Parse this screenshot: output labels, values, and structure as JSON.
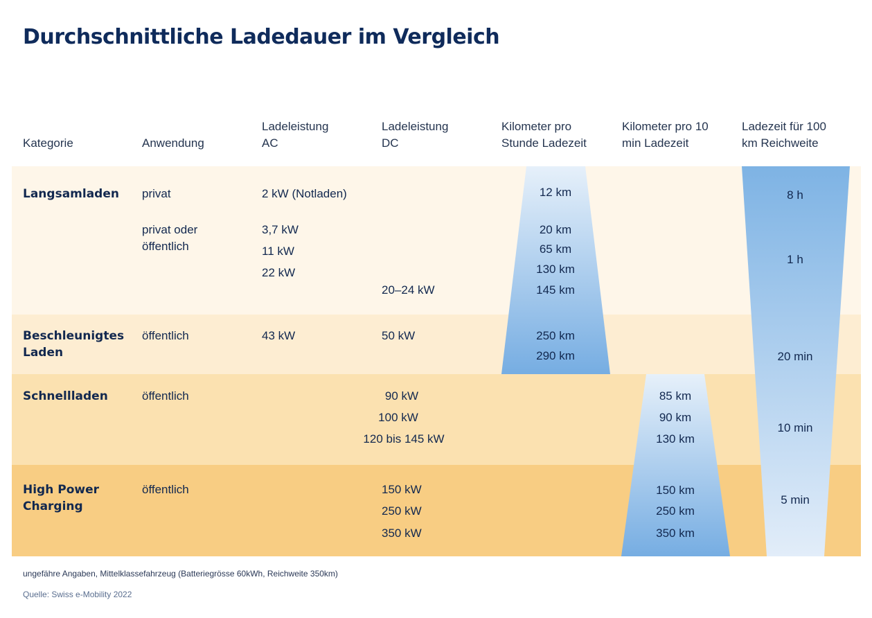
{
  "title": "Durchschnittliche Ladedauer im Vergleich",
  "headers": {
    "kategorie": "Kategorie",
    "anwendung": "Anwendung",
    "ac": "Ladeleistung\nAC",
    "dc": "Ladeleistung\nDC",
    "km_stunde": "Kilometer pro\nStunde Ladezeit",
    "km_10min": "Kilometer pro 10\nmin Ladezeit",
    "ladezeit": "Ladezeit für 100\nkm Reichweite"
  },
  "rows": {
    "langsam": {
      "kategorie": "Langsamladen",
      "anwendung_1": "privat",
      "anwendung_2": "privat oder\nöffentlich",
      "ac_1": "2 kW (Notladen)",
      "ac_2": "3,7 kW",
      "ac_3": "11 kW",
      "ac_4": "22 kW",
      "dc_1": "20–24 kW",
      "km_1": "12 km",
      "km_2": "20 km",
      "km_3": "65 km",
      "km_4": "130 km",
      "km_5": "145 km",
      "zeit_1": "8 h",
      "zeit_2": "1 h"
    },
    "beschleunigt": {
      "kategorie": "Beschleunigtes\nLaden",
      "anwendung": "öffentlich",
      "ac": "43 kW",
      "dc": "50 kW",
      "km_1": "250 km",
      "km_2": "290 km",
      "zeit": "20 min"
    },
    "schnell": {
      "kategorie": "Schnellladen",
      "anwendung": "öffentlich",
      "dc_1": "90 kW",
      "dc_2": "100 kW",
      "dc_3": "120 bis 145 kW",
      "km10_1": "85 km",
      "km10_2": "90 km",
      "km10_3": "130 km",
      "zeit": "10 min"
    },
    "hpc": {
      "kategorie": "High Power\nCharging",
      "anwendung": "öffentlich",
      "dc_1": "150 kW",
      "dc_2": "250 kW",
      "dc_3": "350 kW",
      "km10_1": "150 km",
      "km10_2": "250 km",
      "km10_3": "350 km",
      "zeit": "5 min"
    }
  },
  "footnote": "ungefähre Angaben, Mittelklassefahrzeug (Batteriegrösse 60kWh, Reichweite 350km)",
  "source": "Quelle: Swiss e-Mobility 2022",
  "colors": {
    "title": "#0f2b5b",
    "band_1": "#fef6e9",
    "band_2": "#fdedd2",
    "band_3": "#fbe1b0",
    "band_4": "#f8cd83",
    "gradient_light": "#e4eef9",
    "gradient_dark": "#7eb1e2"
  }
}
